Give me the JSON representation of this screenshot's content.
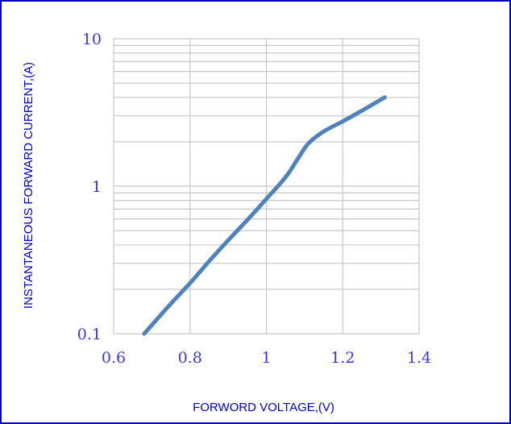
{
  "chart_data": {
    "type": "line",
    "title": "",
    "xlabel": "FORWORD VOLTAGE,(V)",
    "ylabel": "INSTANTANEOUS FORWARD CURRENT,(A)",
    "xlim": [
      0.6,
      1.4
    ],
    "ylim": [
      0.1,
      10
    ],
    "yscale": "log",
    "grid": true,
    "xticks": [
      "0.6",
      "0.8",
      "1",
      "1.2",
      "1.4"
    ],
    "yticks": [
      "0.1",
      "1",
      "10"
    ],
    "series": [
      {
        "x": [
          0.68,
          0.75,
          0.8,
          0.85,
          0.9,
          0.95,
          1.0,
          1.05,
          1.08,
          1.11,
          1.15,
          1.2,
          1.25,
          1.31
        ],
        "y": [
          0.1,
          0.16,
          0.22,
          0.31,
          0.43,
          0.59,
          0.82,
          1.15,
          1.5,
          1.95,
          2.35,
          2.75,
          3.25,
          4.0
        ],
        "color": "#4f81bd"
      }
    ]
  }
}
